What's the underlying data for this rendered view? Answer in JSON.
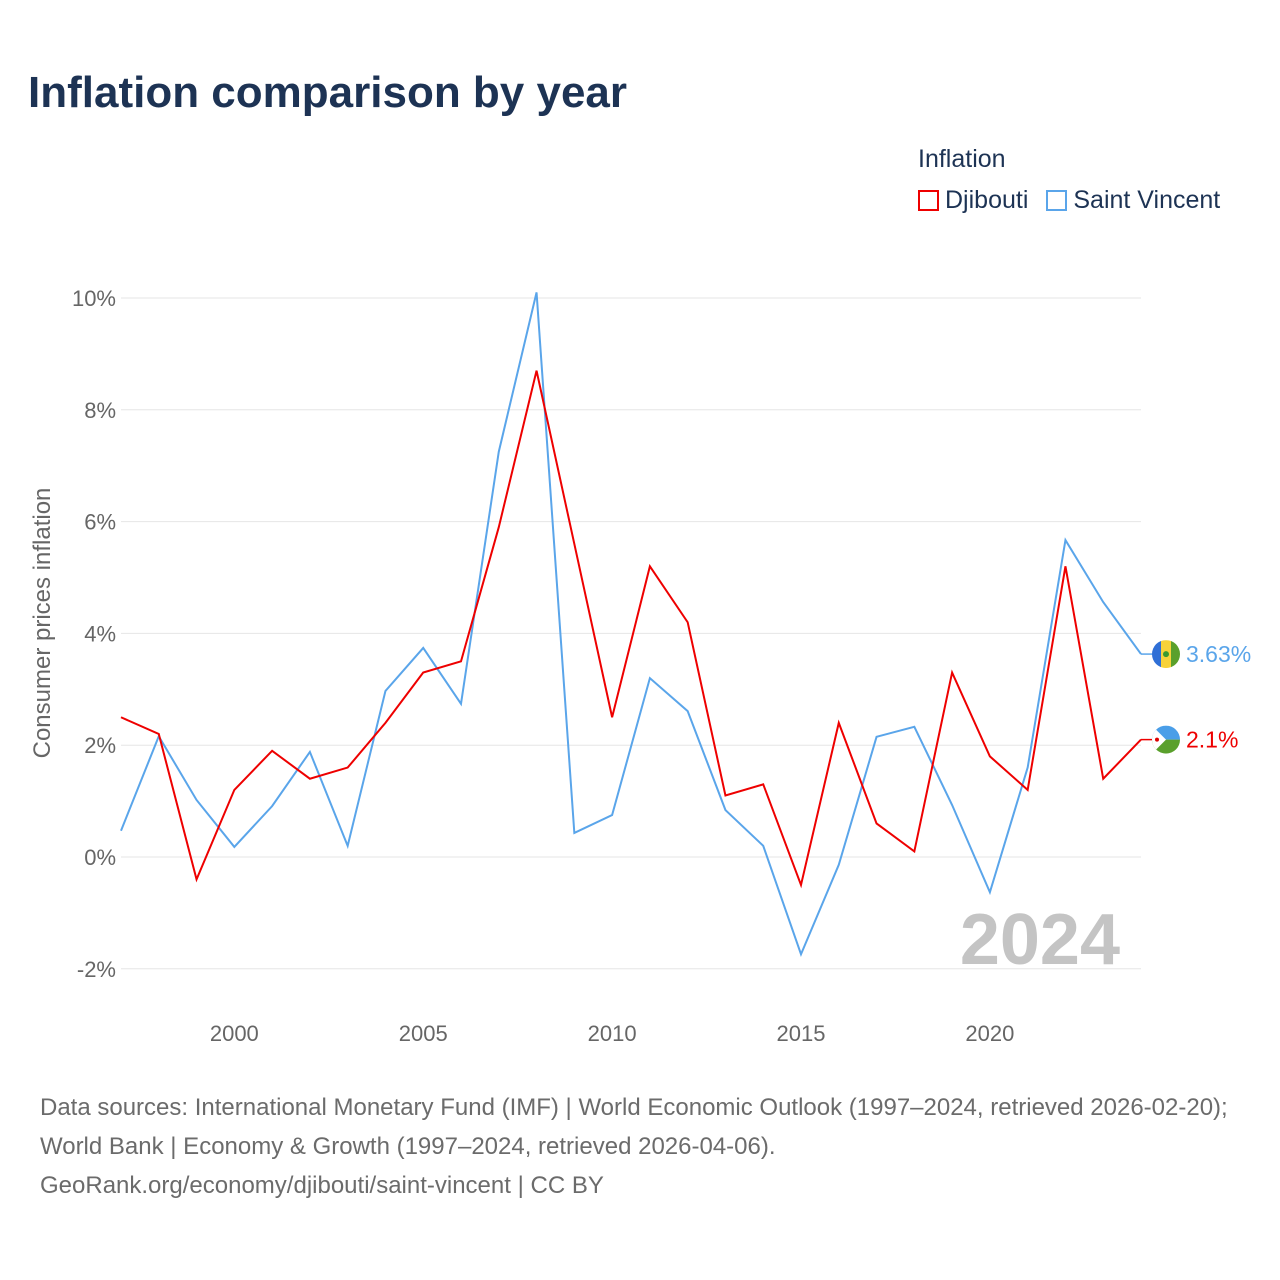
{
  "chart_data": {
    "type": "line",
    "title": "Inflation comparison by year",
    "legend_title": "Inflation",
    "legend_placement": "top-right",
    "ylabel": "Consumer prices inflation",
    "xlabel": "",
    "xlim": [
      1997,
      2024
    ],
    "ylim": [
      -2,
      10
    ],
    "x_ticks": [
      2000,
      2005,
      2010,
      2015,
      2020
    ],
    "y_ticks": [
      -2,
      0,
      2,
      4,
      6,
      8,
      10
    ],
    "y_tick_labels": [
      "-2%",
      "0%",
      "2%",
      "4%",
      "6%",
      "8%",
      "10%"
    ],
    "grid": true,
    "year_watermark": "2024",
    "x": [
      1997,
      1998,
      1999,
      2000,
      2001,
      2002,
      2003,
      2004,
      2005,
      2006,
      2007,
      2008,
      2009,
      2010,
      2011,
      2012,
      2013,
      2014,
      2015,
      2016,
      2017,
      2018,
      2019,
      2020,
      2021,
      2022,
      2023,
      2024
    ],
    "series": [
      {
        "name": "Djibouti",
        "color": "#ee0000",
        "end_label": "2.1%",
        "values": [
          2.5,
          2.2,
          -0.4,
          1.2,
          1.9,
          1.4,
          1.6,
          2.4,
          3.3,
          3.5,
          5.9,
          8.7,
          5.6,
          2.5,
          5.2,
          4.2,
          1.1,
          1.3,
          -0.5,
          2.4,
          0.6,
          0.1,
          3.3,
          1.8,
          1.2,
          5.2,
          1.4,
          2.1
        ]
      },
      {
        "name": "Saint Vincent",
        "color": "#5aa5ea",
        "end_label": "3.63%",
        "values": [
          0.47,
          2.16,
          1.02,
          0.18,
          0.91,
          1.88,
          0.2,
          2.97,
          3.74,
          2.74,
          7.25,
          10.1,
          0.43,
          0.75,
          3.2,
          2.61,
          0.84,
          0.2,
          -1.74,
          -0.14,
          2.15,
          2.33,
          0.93,
          -0.63,
          1.6,
          5.67,
          4.56,
          3.63
        ]
      }
    ]
  },
  "source": {
    "line1": "Data sources: International Monetary Fund (IMF) | World Economic Outlook (1997–2024, retrieved 2026-02-20); World Bank | Economy & Growth (1997–2024, retrieved 2026-04-06).",
    "line2": "GeoRank.org/economy/djibouti/saint-vincent | CC BY"
  }
}
